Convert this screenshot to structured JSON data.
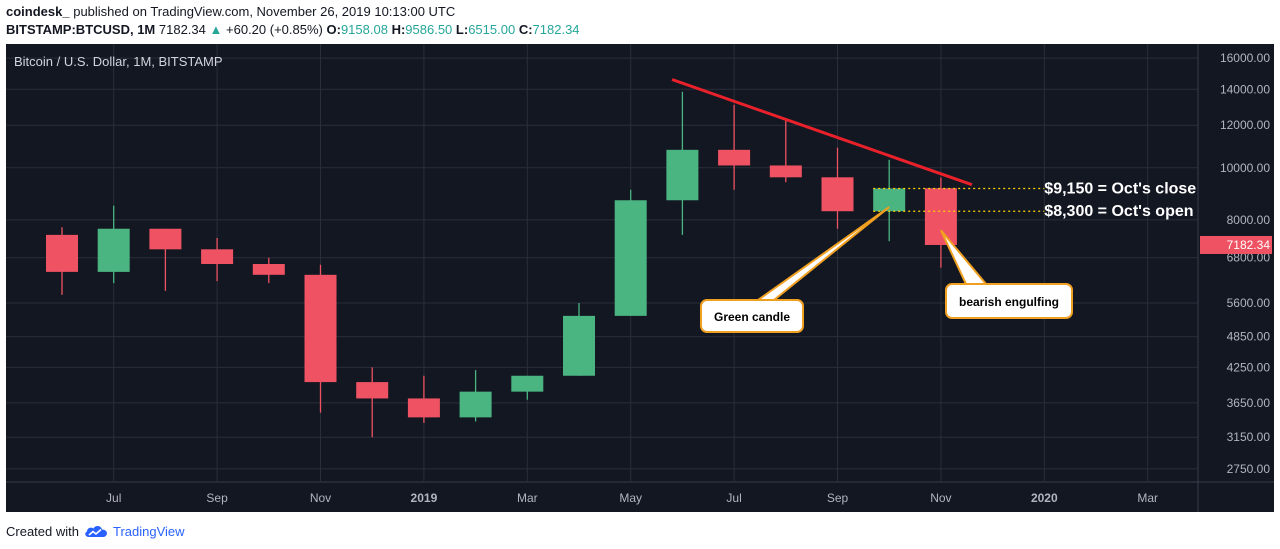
{
  "header": {
    "user": "coindesk_",
    "published": "published on TradingView.com, November 26, 2019 10:13:00 UTC",
    "symbol": "BITSTAMP:BTCUSD, 1M",
    "last": "7182.34",
    "change_arrow": "▲",
    "change": "+60.20 (+0.85%)",
    "o_label": "O:",
    "o_val": "9158.08",
    "h_label": "H:",
    "h_val": "9586.50",
    "l_label": "L:",
    "l_val": "6515.00",
    "c_label": "C:",
    "c_val": "7182.34"
  },
  "footer": {
    "text": "Created with",
    "brand": "TradingView",
    "logo_icon": "tradingview-cloud-icon"
  },
  "colors": {
    "background": "#131722",
    "up": "#4bb582",
    "down": "#ef5262",
    "grid": "#2a2e39",
    "trendline": "#e8212b",
    "callout_border": "#f0a020",
    "level_line": "#ffd400"
  },
  "chart_data": {
    "type": "candlestick",
    "title": "Bitcoin / U.S. Dollar, 1M, BITSTAMP",
    "y_scale": "log",
    "ylim": [
      2600,
      17000
    ],
    "y_ticks": [
      "16000.00",
      "14000.00",
      "12000.00",
      "10000.00",
      "8000.00",
      "6800.00",
      "5600.00",
      "4850.00",
      "4250.00",
      "3650.00",
      "3150.00",
      "2750.00"
    ],
    "x_ticks": [
      "Jul",
      "Sep",
      "Nov",
      "2019",
      "Mar",
      "May",
      "Jul",
      "Sep",
      "Nov",
      "2020",
      "Mar"
    ],
    "x_tick_index": [
      1,
      3,
      5,
      7,
      9,
      11,
      13,
      15,
      17,
      19,
      21
    ],
    "last_price_label": "7182.34",
    "candles": [
      {
        "o": 7500,
        "h": 7750,
        "l": 5800,
        "c": 6400
      },
      {
        "o": 6400,
        "h": 8500,
        "l": 6100,
        "c": 7700
      },
      {
        "o": 7700,
        "h": 7700,
        "l": 5900,
        "c": 7050
      },
      {
        "o": 7050,
        "h": 7400,
        "l": 6150,
        "c": 6620
      },
      {
        "o": 6620,
        "h": 6800,
        "l": 6100,
        "c": 6320
      },
      {
        "o": 6320,
        "h": 6600,
        "l": 3500,
        "c": 3990
      },
      {
        "o": 3990,
        "h": 4250,
        "l": 3150,
        "c": 3720
      },
      {
        "o": 3720,
        "h": 4100,
        "l": 3350,
        "c": 3430
      },
      {
        "o": 3430,
        "h": 4200,
        "l": 3370,
        "c": 3830
      },
      {
        "o": 3830,
        "h": 4100,
        "l": 3700,
        "c": 4100
      },
      {
        "o": 4100,
        "h": 5600,
        "l": 4100,
        "c": 5300
      },
      {
        "o": 5300,
        "h": 9100,
        "l": 5300,
        "c": 8700
      },
      {
        "o": 8700,
        "h": 13850,
        "l": 7500,
        "c": 10800
      },
      {
        "o": 10800,
        "h": 13100,
        "l": 9100,
        "c": 10100
      },
      {
        "o": 10100,
        "h": 12300,
        "l": 9400,
        "c": 9600
      },
      {
        "o": 9600,
        "h": 10900,
        "l": 7700,
        "c": 8300
      },
      {
        "o": 8300,
        "h": 10350,
        "l": 7300,
        "c": 9150
      },
      {
        "o": 9158.08,
        "h": 9586.5,
        "l": 6515,
        "c": 7182.34
      }
    ],
    "trendline": [
      {
        "i": 11.8,
        "v": 14600
      },
      {
        "i": 17.6,
        "v": 9300
      }
    ],
    "levels": [
      {
        "value": 9150,
        "label": "$9,150  = Oct's close"
      },
      {
        "value": 8300,
        "label": "$8,300 = Oct's open"
      }
    ],
    "callouts": [
      {
        "text": "Green candle",
        "candle": 16
      },
      {
        "text": "bearish engulfing",
        "candle": 17
      }
    ]
  }
}
